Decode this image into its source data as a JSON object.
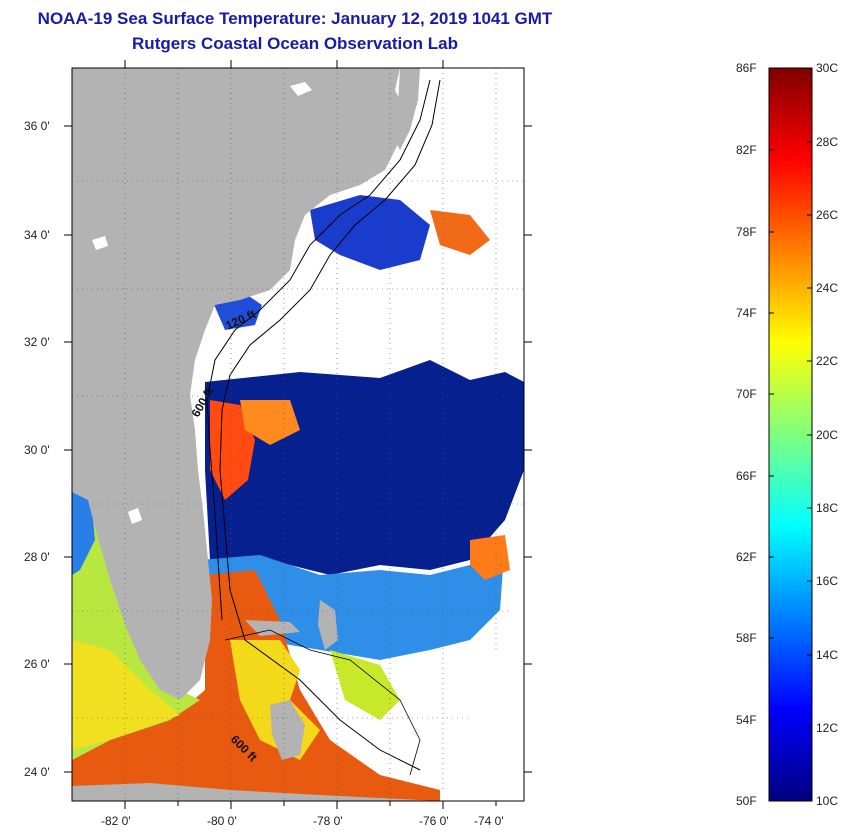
{
  "title": {
    "line1": "NOAA-19 Sea Surface Temperature:  January 12, 2019 1041 GMT",
    "line2": "Rutgers Coastal Ocean Observation Lab"
  },
  "map": {
    "lat_labels": [
      "36 0'",
      "34 0'",
      "32 0'",
      "30 0'",
      "28 0'",
      "26 0'",
      "24 0'"
    ],
    "lon_labels": [
      "-82 0'",
      "-80 0'",
      "-78 0'",
      "-76 0'",
      "-74 0'"
    ],
    "isobath_labels": [
      "120 ft",
      "600 ft",
      "600 ft"
    ],
    "colors": {
      "land": "#b3b3b3",
      "cloud": "#ffffff",
      "cold_water": "#06208f",
      "warm_water": "#e85a10",
      "contour": "#000000"
    }
  },
  "colorbar": {
    "fahrenheit_labels": [
      "86F",
      "82F",
      "78F",
      "74F",
      "70F",
      "66F",
      "62F",
      "58F",
      "54F",
      "50F"
    ],
    "celsius_labels": [
      "30C",
      "28C",
      "26C",
      "24C",
      "22C",
      "20C",
      "18C",
      "16C",
      "14C",
      "12C",
      "10C"
    ],
    "range_f": [
      50,
      86
    ],
    "range_c": [
      10,
      30
    ],
    "colormap": "jet",
    "colors": [
      "#00007f",
      "#0000ff",
      "#007fff",
      "#00ffff",
      "#7fff7f",
      "#ffff00",
      "#ff7f00",
      "#ff0000",
      "#7f0000"
    ]
  }
}
